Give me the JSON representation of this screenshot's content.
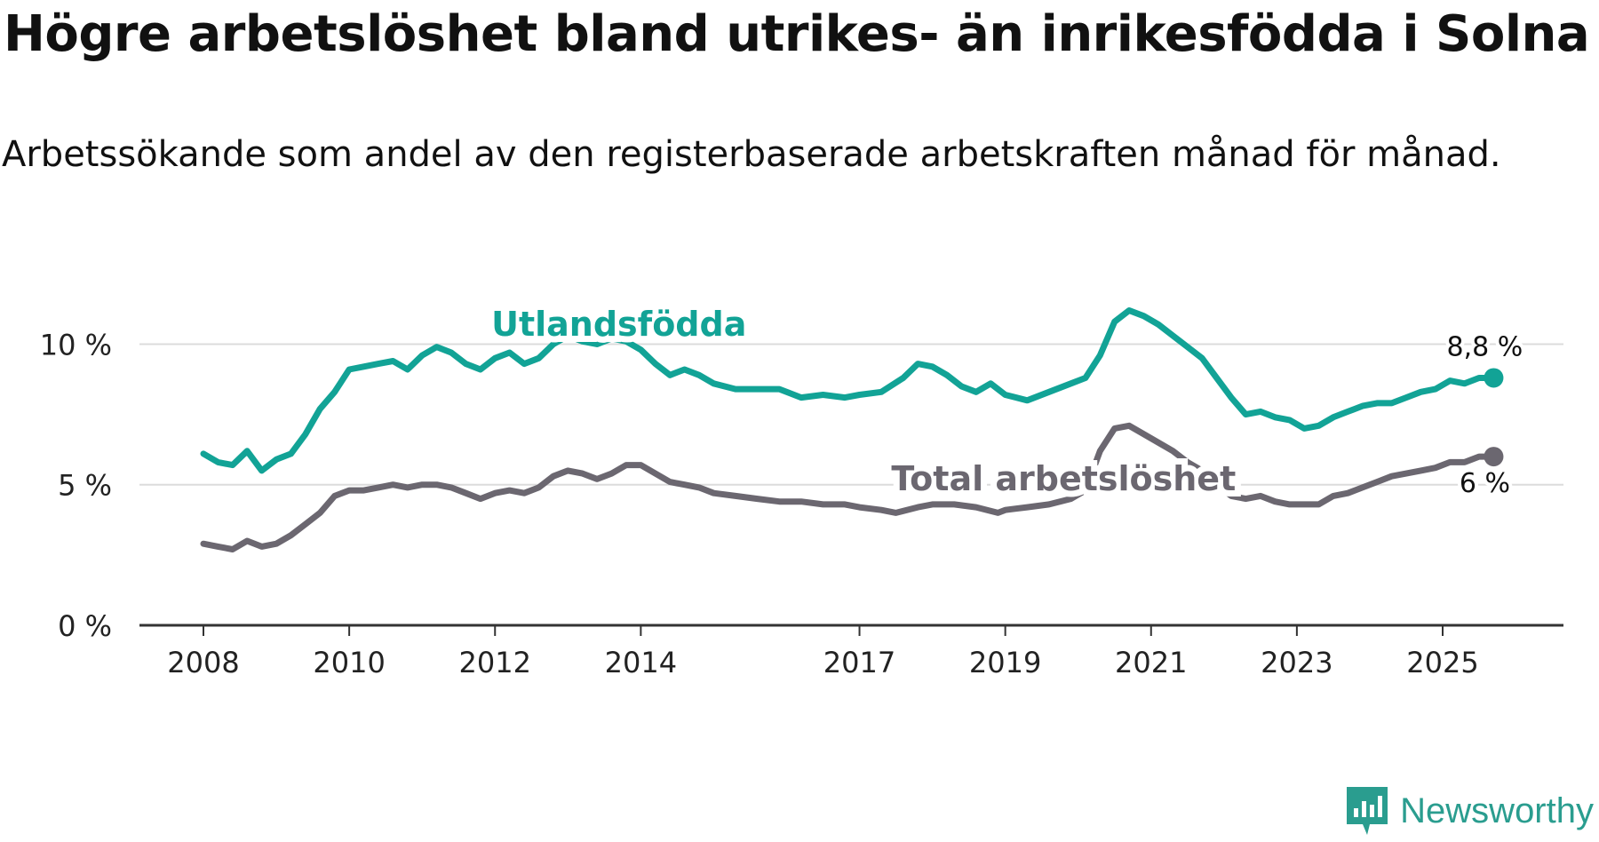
{
  "title": "Högre arbetslöshet bland utrikes- än inrikesfödda i Solna",
  "subtitle": "Arbetssökande som andel av den registerbaserade arbetskraften månad för månad.",
  "brand": "Newsworthy",
  "colors": {
    "foreign": "#12a396",
    "total": "#6b6770",
    "grid": "#dcdcdc",
    "axis": "#333333"
  },
  "chart_data": {
    "type": "line",
    "ylim": [
      0,
      11.5
    ],
    "y_ticks": [
      {
        "value": 0,
        "label": "0 %"
      },
      {
        "value": 5,
        "label": "5 %"
      },
      {
        "value": 10,
        "label": "10 %"
      }
    ],
    "x_ticks": [
      {
        "value": 2008.0,
        "label": "2008"
      },
      {
        "value": 2010.0,
        "label": "2010"
      },
      {
        "value": 2012.0,
        "label": "2012"
      },
      {
        "value": 2014.0,
        "label": "2014"
      },
      {
        "value": 2017.0,
        "label": "2017"
      },
      {
        "value": 2019.0,
        "label": "2019"
      },
      {
        "value": 2021.0,
        "label": "2021"
      },
      {
        "value": 2023.0,
        "label": "2023"
      },
      {
        "value": 2025.0,
        "label": "2025"
      }
    ],
    "xlim": [
      2007.1,
      2026.6
    ],
    "series": [
      {
        "name": "Utlandsfödda",
        "key": "foreign",
        "end_label": "8,8 %",
        "points": [
          [
            2008.0,
            6.1
          ],
          [
            2008.2,
            5.8
          ],
          [
            2008.4,
            5.7
          ],
          [
            2008.6,
            6.2
          ],
          [
            2008.8,
            5.5
          ],
          [
            2009.0,
            5.9
          ],
          [
            2009.2,
            6.1
          ],
          [
            2009.4,
            6.8
          ],
          [
            2009.6,
            7.7
          ],
          [
            2009.8,
            8.3
          ],
          [
            2010.0,
            9.1
          ],
          [
            2010.2,
            9.2
          ],
          [
            2010.4,
            9.3
          ],
          [
            2010.6,
            9.4
          ],
          [
            2010.8,
            9.1
          ],
          [
            2011.0,
            9.6
          ],
          [
            2011.2,
            9.9
          ],
          [
            2011.4,
            9.7
          ],
          [
            2011.6,
            9.3
          ],
          [
            2011.8,
            9.1
          ],
          [
            2012.0,
            9.5
          ],
          [
            2012.2,
            9.7
          ],
          [
            2012.4,
            9.3
          ],
          [
            2012.6,
            9.5
          ],
          [
            2012.8,
            10.0
          ],
          [
            2013.0,
            10.3
          ],
          [
            2013.2,
            10.1
          ],
          [
            2013.4,
            10.0
          ],
          [
            2013.6,
            10.2
          ],
          [
            2013.8,
            10.1
          ],
          [
            2014.0,
            9.8
          ],
          [
            2014.2,
            9.3
          ],
          [
            2014.4,
            8.9
          ],
          [
            2014.6,
            9.1
          ],
          [
            2014.8,
            8.9
          ],
          [
            2015.0,
            8.6
          ],
          [
            2015.3,
            8.4
          ],
          [
            2015.6,
            8.4
          ],
          [
            2015.9,
            8.4
          ],
          [
            2016.2,
            8.1
          ],
          [
            2016.5,
            8.2
          ],
          [
            2016.8,
            8.1
          ],
          [
            2017.0,
            8.2
          ],
          [
            2017.3,
            8.3
          ],
          [
            2017.6,
            8.8
          ],
          [
            2017.8,
            9.3
          ],
          [
            2018.0,
            9.2
          ],
          [
            2018.2,
            8.9
          ],
          [
            2018.4,
            8.5
          ],
          [
            2018.6,
            8.3
          ],
          [
            2018.8,
            8.6
          ],
          [
            2019.0,
            8.2
          ],
          [
            2019.3,
            8.0
          ],
          [
            2019.6,
            8.3
          ],
          [
            2019.9,
            8.6
          ],
          [
            2020.1,
            8.8
          ],
          [
            2020.3,
            9.6
          ],
          [
            2020.5,
            10.8
          ],
          [
            2020.7,
            11.2
          ],
          [
            2020.9,
            11.0
          ],
          [
            2021.1,
            10.7
          ],
          [
            2021.3,
            10.3
          ],
          [
            2021.5,
            9.9
          ],
          [
            2021.7,
            9.5
          ],
          [
            2021.9,
            8.8
          ],
          [
            2022.1,
            8.1
          ],
          [
            2022.3,
            7.5
          ],
          [
            2022.5,
            7.6
          ],
          [
            2022.7,
            7.4
          ],
          [
            2022.9,
            7.3
          ],
          [
            2023.1,
            7.0
          ],
          [
            2023.3,
            7.1
          ],
          [
            2023.5,
            7.4
          ],
          [
            2023.7,
            7.6
          ],
          [
            2023.9,
            7.8
          ],
          [
            2024.1,
            7.9
          ],
          [
            2024.3,
            7.9
          ],
          [
            2024.5,
            8.1
          ],
          [
            2024.7,
            8.3
          ],
          [
            2024.9,
            8.4
          ],
          [
            2025.1,
            8.7
          ],
          [
            2025.3,
            8.6
          ],
          [
            2025.5,
            8.8
          ],
          [
            2025.7,
            8.8
          ]
        ]
      },
      {
        "name": "Total arbetslöshet",
        "key": "total",
        "end_label": "6 %",
        "points": [
          [
            2008.0,
            2.9
          ],
          [
            2008.2,
            2.8
          ],
          [
            2008.4,
            2.7
          ],
          [
            2008.6,
            3.0
          ],
          [
            2008.8,
            2.8
          ],
          [
            2009.0,
            2.9
          ],
          [
            2009.2,
            3.2
          ],
          [
            2009.4,
            3.6
          ],
          [
            2009.6,
            4.0
          ],
          [
            2009.8,
            4.6
          ],
          [
            2010.0,
            4.8
          ],
          [
            2010.2,
            4.8
          ],
          [
            2010.4,
            4.9
          ],
          [
            2010.6,
            5.0
          ],
          [
            2010.8,
            4.9
          ],
          [
            2011.0,
            5.0
          ],
          [
            2011.2,
            5.0
          ],
          [
            2011.4,
            4.9
          ],
          [
            2011.6,
            4.7
          ],
          [
            2011.8,
            4.5
          ],
          [
            2012.0,
            4.7
          ],
          [
            2012.2,
            4.8
          ],
          [
            2012.4,
            4.7
          ],
          [
            2012.6,
            4.9
          ],
          [
            2012.8,
            5.3
          ],
          [
            2013.0,
            5.5
          ],
          [
            2013.2,
            5.4
          ],
          [
            2013.4,
            5.2
          ],
          [
            2013.6,
            5.4
          ],
          [
            2013.8,
            5.7
          ],
          [
            2014.0,
            5.7
          ],
          [
            2014.2,
            5.4
          ],
          [
            2014.4,
            5.1
          ],
          [
            2014.6,
            5.0
          ],
          [
            2014.8,
            4.9
          ],
          [
            2015.0,
            4.7
          ],
          [
            2015.3,
            4.6
          ],
          [
            2015.6,
            4.5
          ],
          [
            2015.9,
            4.4
          ],
          [
            2016.2,
            4.4
          ],
          [
            2016.5,
            4.3
          ],
          [
            2016.8,
            4.3
          ],
          [
            2017.0,
            4.2
          ],
          [
            2017.3,
            4.1
          ],
          [
            2017.5,
            4.0
          ],
          [
            2017.8,
            4.2
          ],
          [
            2018.0,
            4.3
          ],
          [
            2018.3,
            4.3
          ],
          [
            2018.6,
            4.2
          ],
          [
            2018.9,
            4.0
          ],
          [
            2019.0,
            4.1
          ],
          [
            2019.3,
            4.2
          ],
          [
            2019.6,
            4.3
          ],
          [
            2019.9,
            4.5
          ],
          [
            2020.1,
            4.8
          ],
          [
            2020.3,
            6.2
          ],
          [
            2020.5,
            7.0
          ],
          [
            2020.7,
            7.1
          ],
          [
            2020.9,
            6.8
          ],
          [
            2021.1,
            6.5
          ],
          [
            2021.3,
            6.2
          ],
          [
            2021.5,
            5.8
          ],
          [
            2021.7,
            5.5
          ],
          [
            2021.9,
            5.0
          ],
          [
            2022.1,
            4.6
          ],
          [
            2022.3,
            4.5
          ],
          [
            2022.5,
            4.6
          ],
          [
            2022.7,
            4.4
          ],
          [
            2022.9,
            4.3
          ],
          [
            2023.1,
            4.3
          ],
          [
            2023.3,
            4.3
          ],
          [
            2023.5,
            4.6
          ],
          [
            2023.7,
            4.7
          ],
          [
            2023.9,
            4.9
          ],
          [
            2024.1,
            5.1
          ],
          [
            2024.3,
            5.3
          ],
          [
            2024.5,
            5.4
          ],
          [
            2024.7,
            5.5
          ],
          [
            2024.9,
            5.6
          ],
          [
            2025.1,
            5.8
          ],
          [
            2025.3,
            5.8
          ],
          [
            2025.5,
            6.0
          ],
          [
            2025.7,
            6.0
          ]
        ]
      }
    ],
    "annotations": [
      {
        "text": "Utlandsfödda",
        "series": "foreign",
        "x": 2013.7,
        "y": 10.3
      },
      {
        "text": "Total arbetslöshet",
        "series": "total",
        "x": 2019.8,
        "y": 4.8
      }
    ]
  }
}
